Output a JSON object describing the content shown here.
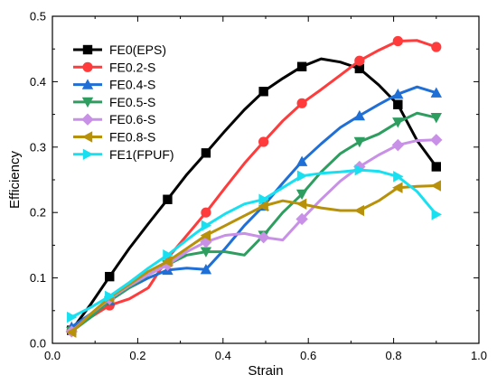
{
  "chart_data": {
    "type": "line",
    "xlabel": "Strain",
    "ylabel": "Efficiency",
    "xlim": [
      0.0,
      1.0
    ],
    "ylim": [
      0.0,
      0.5
    ],
    "x_ticks": [
      "0.0",
      "0.2",
      "0.4",
      "0.6",
      "0.8",
      "1.0"
    ],
    "y_ticks": [
      "0.0",
      "0.1",
      "0.2",
      "0.3",
      "0.4",
      "0.5"
    ],
    "grid": false,
    "legend_position": "top-left",
    "series": [
      {
        "name": "FE0(EPS)",
        "color": "#000000",
        "marker": "square",
        "x": [
          0.045,
          0.09,
          0.134,
          0.18,
          0.225,
          0.27,
          0.315,
          0.36,
          0.405,
          0.45,
          0.495,
          0.54,
          0.585,
          0.63,
          0.675,
          0.72,
          0.765,
          0.81,
          0.855,
          0.9
        ],
        "y": [
          0.02,
          0.06,
          0.102,
          0.145,
          0.183,
          0.22,
          0.258,
          0.291,
          0.325,
          0.357,
          0.385,
          0.405,
          0.423,
          0.435,
          0.43,
          0.42,
          0.395,
          0.365,
          0.31,
          0.27
        ],
        "marker_indices": [
          0,
          2,
          5,
          7,
          10,
          12,
          15,
          17,
          19
        ]
      },
      {
        "name": "FE0.2-S",
        "color": "#ff3b3b",
        "marker": "circle",
        "x": [
          0.045,
          0.09,
          0.134,
          0.18,
          0.225,
          0.27,
          0.315,
          0.36,
          0.405,
          0.45,
          0.495,
          0.54,
          0.585,
          0.63,
          0.675,
          0.72,
          0.765,
          0.81,
          0.855,
          0.9
        ],
        "y": [
          0.02,
          0.04,
          0.058,
          0.068,
          0.085,
          0.13,
          0.165,
          0.2,
          0.238,
          0.275,
          0.308,
          0.34,
          0.367,
          0.388,
          0.41,
          0.432,
          0.448,
          0.462,
          0.463,
          0.453
        ],
        "marker_indices": [
          0,
          2,
          7,
          10,
          12,
          15,
          17,
          19
        ]
      },
      {
        "name": "FE0.4-S",
        "color": "#1f6fd6",
        "marker": "triangle-up",
        "x": [
          0.045,
          0.09,
          0.134,
          0.18,
          0.225,
          0.27,
          0.315,
          0.36,
          0.405,
          0.45,
          0.495,
          0.54,
          0.585,
          0.63,
          0.675,
          0.72,
          0.765,
          0.81,
          0.855,
          0.9
        ],
        "y": [
          0.025,
          0.045,
          0.065,
          0.085,
          0.1,
          0.112,
          0.115,
          0.113,
          0.145,
          0.18,
          0.21,
          0.245,
          0.278,
          0.305,
          0.33,
          0.348,
          0.365,
          0.381,
          0.392,
          0.383
        ],
        "marker_indices": [
          0,
          2,
          5,
          7,
          10,
          12,
          15,
          17,
          19
        ]
      },
      {
        "name": "FE0.5-S",
        "color": "#2e9e60",
        "marker": "triangle-down",
        "x": [
          0.045,
          0.09,
          0.134,
          0.18,
          0.225,
          0.27,
          0.315,
          0.36,
          0.405,
          0.45,
          0.495,
          0.54,
          0.585,
          0.63,
          0.675,
          0.72,
          0.765,
          0.81,
          0.855,
          0.9
        ],
        "y": [
          0.018,
          0.04,
          0.065,
          0.085,
          0.105,
          0.12,
          0.135,
          0.14,
          0.14,
          0.135,
          0.165,
          0.2,
          0.228,
          0.262,
          0.29,
          0.308,
          0.32,
          0.338,
          0.352,
          0.345
        ],
        "marker_indices": [
          0,
          2,
          5,
          7,
          10,
          12,
          15,
          17,
          19
        ]
      },
      {
        "name": "FE0.6-S",
        "color": "#c890e6",
        "marker": "diamond",
        "x": [
          0.045,
          0.09,
          0.134,
          0.18,
          0.225,
          0.27,
          0.315,
          0.36,
          0.405,
          0.45,
          0.495,
          0.54,
          0.585,
          0.63,
          0.675,
          0.72,
          0.765,
          0.81,
          0.855,
          0.9
        ],
        "y": [
          0.018,
          0.045,
          0.068,
          0.088,
          0.105,
          0.12,
          0.14,
          0.155,
          0.165,
          0.168,
          0.162,
          0.158,
          0.19,
          0.22,
          0.248,
          0.27,
          0.288,
          0.303,
          0.31,
          0.311
        ],
        "marker_indices": [
          0,
          2,
          5,
          7,
          10,
          12,
          15,
          17,
          19
        ]
      },
      {
        "name": "FE0.8-S",
        "color": "#b8910a",
        "marker": "triangle-left",
        "x": [
          0.045,
          0.09,
          0.134,
          0.18,
          0.225,
          0.27,
          0.315,
          0.36,
          0.405,
          0.45,
          0.495,
          0.54,
          0.585,
          0.63,
          0.675,
          0.72,
          0.765,
          0.81,
          0.855,
          0.9
        ],
        "y": [
          0.017,
          0.045,
          0.07,
          0.09,
          0.11,
          0.125,
          0.145,
          0.165,
          0.18,
          0.195,
          0.21,
          0.218,
          0.213,
          0.207,
          0.203,
          0.203,
          0.218,
          0.238,
          0.24,
          0.241
        ],
        "marker_indices": [
          0,
          2,
          5,
          7,
          10,
          12,
          15,
          17,
          19
        ]
      },
      {
        "name": "FE1(FPUF)",
        "color": "#18e0f0",
        "marker": "triangle-right",
        "x": [
          0.045,
          0.09,
          0.134,
          0.18,
          0.225,
          0.27,
          0.315,
          0.36,
          0.405,
          0.45,
          0.495,
          0.54,
          0.585,
          0.63,
          0.675,
          0.72,
          0.765,
          0.81,
          0.855,
          0.9
        ],
        "y": [
          0.04,
          0.055,
          0.072,
          0.093,
          0.115,
          0.135,
          0.158,
          0.18,
          0.198,
          0.213,
          0.22,
          0.238,
          0.256,
          0.26,
          0.262,
          0.265,
          0.263,
          0.255,
          0.232,
          0.197
        ],
        "marker_indices": [
          0,
          2,
          5,
          7,
          10,
          12,
          15,
          17,
          19
        ]
      }
    ]
  }
}
